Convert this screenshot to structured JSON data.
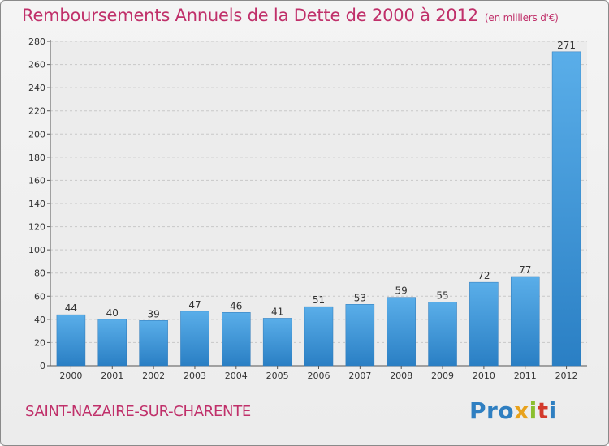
{
  "chart_data": {
    "type": "bar",
    "title": "Remboursements Annuels de la Dette de 2000 à 2012",
    "subtitle": "(en milliers d'€)",
    "categories": [
      "2000",
      "2001",
      "2002",
      "2003",
      "2004",
      "2005",
      "2006",
      "2007",
      "2008",
      "2009",
      "2010",
      "2011",
      "2012"
    ],
    "values": [
      44,
      40,
      39,
      47,
      46,
      41,
      51,
      53,
      59,
      55,
      72,
      77,
      271
    ],
    "ylim": [
      0,
      280
    ],
    "yticks": [
      0,
      20,
      40,
      60,
      80,
      100,
      120,
      140,
      160,
      180,
      200,
      220,
      240,
      260,
      280
    ],
    "grid": true,
    "bar_color": "#3d97dc",
    "title_color": "#c0306a"
  },
  "footer": {
    "commune": "SAINT-NAZAIRE-SUR-CHARENTE",
    "logo_letters": [
      "Pro",
      "x",
      "i",
      "t",
      "i"
    ]
  }
}
